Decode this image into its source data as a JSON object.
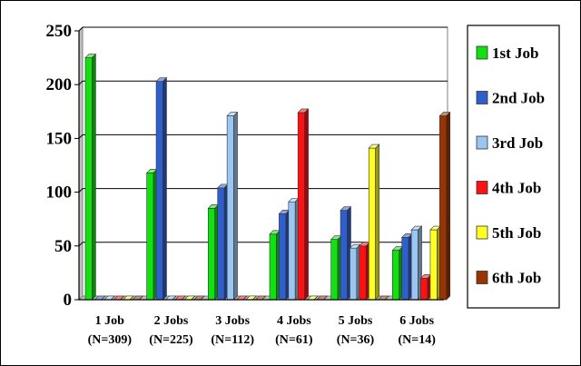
{
  "chart_data": {
    "type": "bar",
    "title": "",
    "xlabel": "",
    "ylabel": "",
    "ylim": [
      0,
      250
    ],
    "yticks": [
      0,
      50,
      100,
      150,
      200,
      250
    ],
    "grid": true,
    "legend_position": "right",
    "categories": [
      {
        "line1": "1 Job",
        "line2": "(N=309)"
      },
      {
        "line1": "2 Jobs",
        "line2": "(N=225)"
      },
      {
        "line1": "3 Jobs",
        "line2": "(N=112)"
      },
      {
        "line1": "4 Jobs",
        "line2": "(N=61)"
      },
      {
        "line1": "5 Jobs",
        "line2": "(N=36)"
      },
      {
        "line1": "6 Jobs",
        "line2": "(N=14)"
      }
    ],
    "series": [
      {
        "name": "1st Job",
        "color": "#11e011",
        "values": [
          225,
          118,
          85,
          61,
          56,
          46
        ]
      },
      {
        "name": "2nd Job",
        "color": "#2f5fcc",
        "values": [
          0,
          203,
          104,
          80,
          83,
          58
        ]
      },
      {
        "name": "3rd Job",
        "color": "#9cc6f2",
        "values": [
          0,
          0,
          171,
          91,
          48,
          65
        ]
      },
      {
        "name": "4th Job",
        "color": "#ff1111",
        "values": [
          0,
          0,
          0,
          174,
          50,
          20
        ]
      },
      {
        "name": "5th Job",
        "color": "#ffff22",
        "values": [
          0,
          0,
          0,
          0,
          141,
          65
        ]
      },
      {
        "name": "6th Job",
        "color": "#993300",
        "values": [
          0,
          0,
          0,
          0,
          0,
          171
        ]
      }
    ]
  }
}
